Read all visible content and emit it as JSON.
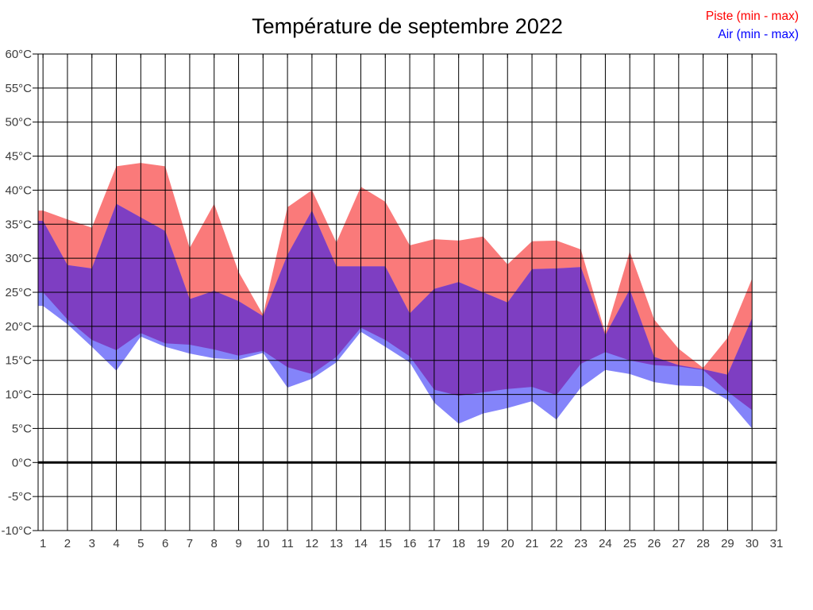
{
  "title": "Température de septembre 2022",
  "legend": {
    "piste_label": "Piste (min - max)",
    "air_label": "Air (min - max)",
    "piste_text_color": "#FF0000",
    "air_text_color": "#0000FF"
  },
  "chart_data": {
    "type": "area",
    "title": "Température de septembre 2022",
    "xlabel": "",
    "ylabel": "°C",
    "xlim": [
      1,
      31
    ],
    "ylim": [
      -10,
      60
    ],
    "grid": true,
    "x": [
      1,
      2,
      3,
      4,
      5,
      6,
      7,
      8,
      9,
      10,
      11,
      12,
      13,
      14,
      15,
      16,
      17,
      18,
      19,
      20,
      21,
      22,
      23,
      24,
      25,
      26,
      27,
      28,
      29,
      30
    ],
    "series": [
      {
        "name": "Piste min",
        "values": [
          25,
          21,
          18,
          16.5,
          19,
          17.5,
          17.3,
          16.6,
          15.7,
          16.4,
          14,
          13,
          15.5,
          19.8,
          18,
          15.6,
          10.7,
          9.8,
          10.3,
          10.8,
          11.1,
          9.9,
          14.5,
          16.2,
          15,
          14.3,
          14.1,
          13.6,
          10.4,
          7.7
        ]
      },
      {
        "name": "Piste max",
        "values": [
          37,
          35.7,
          34.5,
          43.5,
          44,
          43.5,
          31.5,
          38,
          28,
          21.7,
          37.5,
          40,
          32.3,
          40.5,
          38.3,
          31.9,
          32.8,
          32.6,
          33.2,
          29.1,
          32.5,
          32.6,
          31.3,
          19,
          31,
          21,
          16.7,
          13.9,
          18.3,
          27
        ]
      },
      {
        "name": "Air min",
        "values": [
          23,
          20.3,
          17,
          13.5,
          18.5,
          17,
          16,
          15.3,
          15.1,
          16.1,
          11,
          12.3,
          14.7,
          19.2,
          17,
          14.7,
          8.8,
          5.7,
          7.2,
          8,
          9,
          6.3,
          11,
          13.6,
          13,
          11.8,
          11.3,
          11.2,
          9.2,
          5
        ]
      },
      {
        "name": "Air max",
        "values": [
          35.5,
          29,
          28.5,
          38,
          36,
          34,
          24,
          25.2,
          23.7,
          21.5,
          30.5,
          37,
          28.8,
          28.8,
          28.8,
          21.9,
          25.5,
          26.5,
          25,
          23.5,
          28.4,
          28.5,
          28.7,
          18.7,
          25.4,
          15.5,
          14.3,
          13.7,
          12.9,
          21.2
        ]
      }
    ],
    "x_tick_labels": [
      "1",
      "2",
      "3",
      "4",
      "5",
      "6",
      "7",
      "8",
      "9",
      "10",
      "11",
      "12",
      "13",
      "14",
      "15",
      "16",
      "17",
      "18",
      "19",
      "20",
      "21",
      "22",
      "23",
      "24",
      "25",
      "26",
      "27",
      "28",
      "29",
      "30",
      "31"
    ],
    "y_tick_labels": [
      "60°C",
      "55°C",
      "50°C",
      "45°C",
      "40°C",
      "35°C",
      "30°C",
      "25°C",
      "20°C",
      "15°C",
      "10°C",
      "5°C",
      "0°C",
      "-5°C",
      "-10°C"
    ],
    "y_tick_values": [
      60,
      55,
      50,
      45,
      40,
      35,
      30,
      25,
      20,
      15,
      10,
      5,
      0,
      -5,
      -10
    ],
    "legend_position": "top-right",
    "colors": {
      "piste_band": "#FA7A7A",
      "air_band": "#8484FA",
      "overlap_band": "#7E3EC2",
      "grid_line": "#000000",
      "zero_line": "#000000",
      "axis_box": "#000000",
      "tick_label": "#3B3B3B",
      "title_color": "#000000"
    }
  }
}
